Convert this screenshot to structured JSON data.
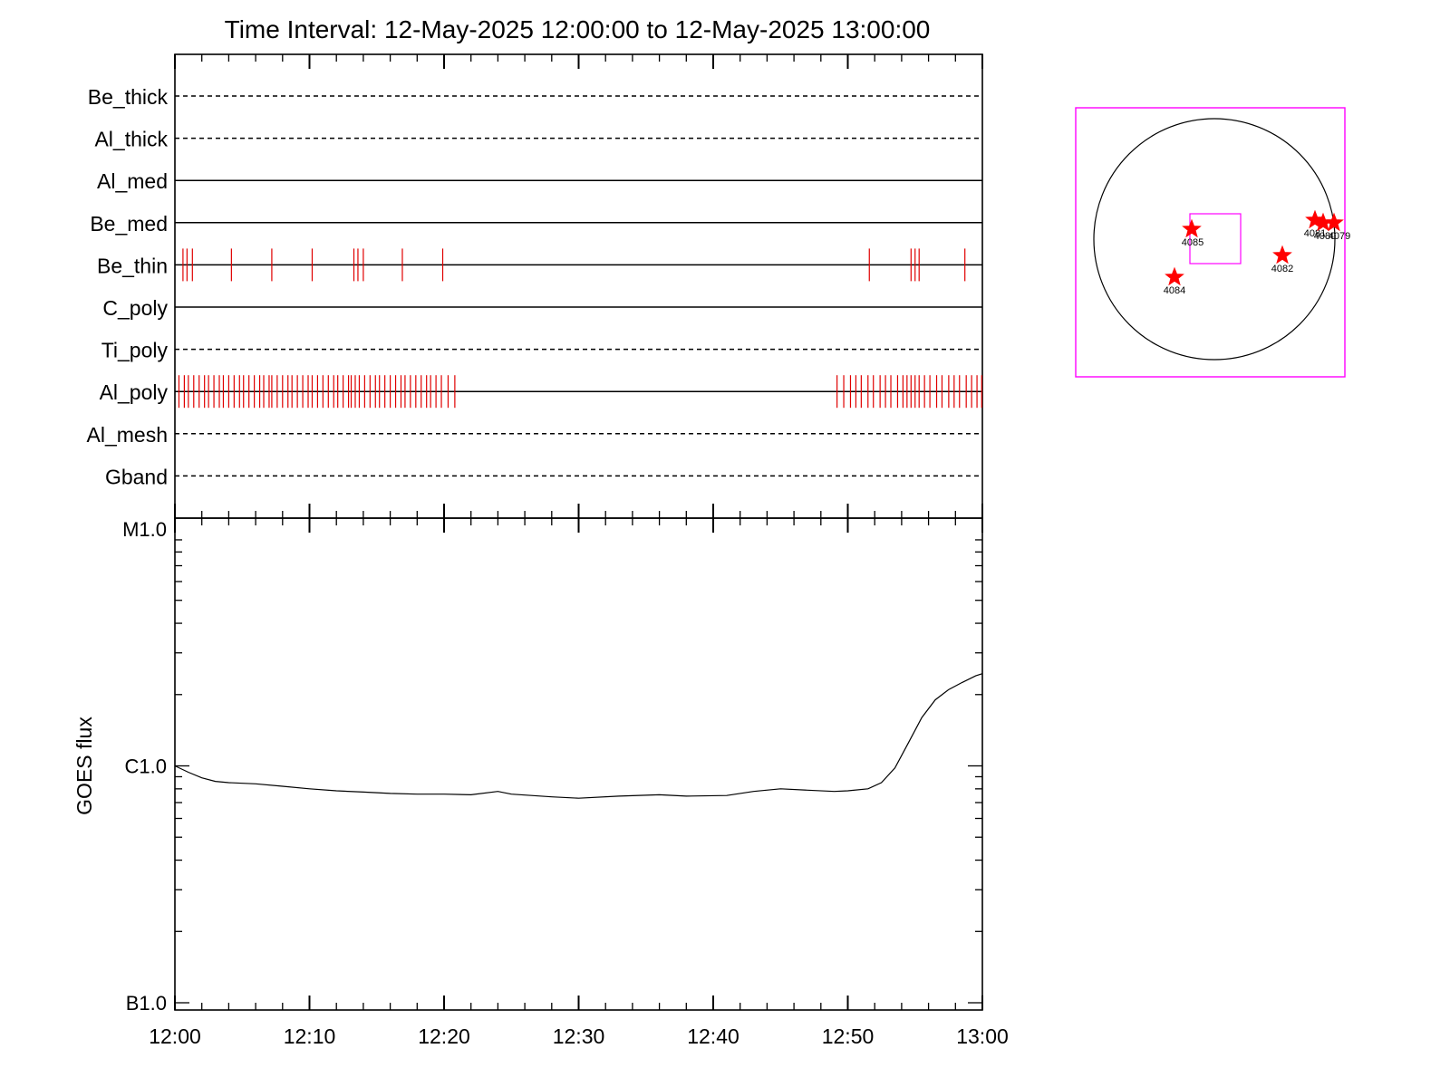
{
  "chart_data": [
    {
      "type": "line",
      "title": "Time Interval: 12-May-2025 12:00:00 to 12-May-2025 13:00:00",
      "x_tick_labels": [
        "12:00",
        "12:10",
        "12:20",
        "12:30",
        "12:40",
        "12:50",
        "13:00"
      ],
      "x_range_minutes": [
        0,
        60
      ],
      "filter_panel": {
        "filters": [
          {
            "name": "Be_thick",
            "line": "dashed",
            "events_min": []
          },
          {
            "name": "Al_thick",
            "line": "dashed",
            "events_min": []
          },
          {
            "name": "Al_med",
            "line": "solid",
            "events_min": []
          },
          {
            "name": "Be_med",
            "line": "solid",
            "events_min": []
          },
          {
            "name": "Be_thin",
            "line": "solid",
            "events_min": [
              0.6,
              0.9,
              1.3,
              4.2,
              7.2,
              10.2,
              13.3,
              13.6,
              14.0,
              16.9,
              19.9,
              51.6,
              54.7,
              55.0,
              55.3,
              58.7
            ]
          },
          {
            "name": "C_poly",
            "line": "solid",
            "events_min": []
          },
          {
            "name": "Ti_poly",
            "line": "dashed",
            "events_min": []
          },
          {
            "name": "Al_poly",
            "line": "solid",
            "events_min": [
              0.3,
              0.7,
              1.0,
              1.4,
              1.8,
              2.2,
              2.5,
              2.9,
              3.3,
              3.6,
              4.0,
              4.4,
              4.8,
              5.1,
              5.5,
              5.9,
              6.3,
              6.6,
              7.0,
              7.2,
              7.6,
              8.0,
              8.4,
              8.7,
              9.1,
              9.5,
              9.9,
              10.2,
              10.6,
              11.0,
              11.4,
              11.8,
              12.1,
              12.5,
              12.9,
              13.1,
              13.4,
              13.7,
              14.1,
              14.5,
              14.9,
              15.2,
              15.6,
              16.0,
              16.4,
              16.8,
              17.1,
              17.5,
              17.9,
              18.3,
              18.7,
              19.0,
              19.4,
              19.8,
              20.3,
              20.8,
              49.2,
              49.7,
              50.2,
              50.6,
              51.0,
              51.5,
              51.9,
              52.4,
              52.8,
              53.2,
              53.7,
              54.1,
              54.4,
              54.7,
              55.0,
              55.3,
              55.7,
              56.1,
              56.6,
              57.0,
              57.5,
              57.9,
              58.3,
              58.8,
              59.2,
              59.6,
              59.95
            ]
          },
          {
            "name": "Al_mesh",
            "line": "dashed",
            "events_min": []
          },
          {
            "name": "Gband",
            "line": "dashed",
            "events_min": []
          }
        ]
      },
      "goes_panel": {
        "ylabel": "GOES flux",
        "y_scale": "log",
        "y_range": [
          1e-07,
          1e-05
        ],
        "y_tick_labels": [
          {
            "label": "M1.0",
            "value": 1e-05
          },
          {
            "label": "C1.0",
            "value": 1e-06
          },
          {
            "label": "B1.0",
            "value": 1e-07
          }
        ],
        "series": [
          {
            "x_min": [
              0,
              1,
              2,
              3,
              4,
              6,
              8,
              10,
              12,
              14,
              16,
              18,
              20,
              22,
              24,
              25,
              28,
              30,
              33,
              36,
              38,
              41,
              43,
              45,
              47,
              49,
              50,
              51.5,
              52.5,
              53.5,
              54.5,
              55.5,
              56.5,
              57.5,
              58.5,
              59.5,
              60
            ],
            "y": [
              1e-06,
              9.4e-07,
              8.9e-07,
              8.6e-07,
              8.5e-07,
              8.4e-07,
              8.2e-07,
              8e-07,
              7.85e-07,
              7.75e-07,
              7.65e-07,
              7.6e-07,
              7.6e-07,
              7.55e-07,
              7.8e-07,
              7.6e-07,
              7.4e-07,
              7.3e-07,
              7.45e-07,
              7.55e-07,
              7.45e-07,
              7.5e-07,
              7.8e-07,
              8e-07,
              7.9e-07,
              7.8e-07,
              7.85e-07,
              8e-07,
              8.5e-07,
              9.8e-07,
              1.25e-06,
              1.6e-06,
              1.9e-06,
              2.1e-06,
              2.25e-06,
              2.4e-06,
              2.45e-06
            ]
          }
        ]
      }
    },
    {
      "type": "scatter",
      "solar_map": {
        "regions": [
          {
            "label": "4085"
          },
          {
            "label": "4084"
          },
          {
            "label": "4082"
          },
          {
            "label": "4081"
          },
          {
            "label": "4080"
          },
          {
            "label": "4079"
          }
        ]
      }
    }
  ]
}
